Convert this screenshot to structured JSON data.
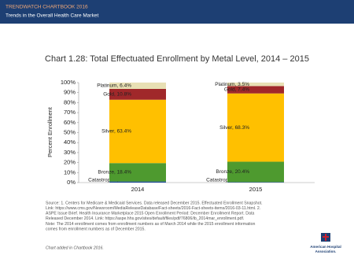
{
  "header": {
    "series": "TRENDWATCH CHARTBOOK 2016",
    "subtitle": "Trends in the Overall Health Care Market"
  },
  "chart_data": {
    "type": "stacked_bar",
    "title": "Chart 1.28: Total Effectuated Enrollment by Metal Level, 2014 – 2015",
    "y_label": "Percent Enrollment",
    "categories": [
      "2014",
      "2015"
    ],
    "series": [
      {
        "name": "Catastrophic",
        "color": "#1f4e9a",
        "values": [
          1.1,
          0.5
        ],
        "value_labels": [
          "Catastrophic, 1.1%",
          "Catastrophic, 0.5%"
        ]
      },
      {
        "name": "Bronze",
        "color": "#4e9a2f",
        "values": [
          18.4,
          20.4
        ],
        "value_labels": [
          "Bronze, 18.4%",
          "Bronze, 20.4%"
        ]
      },
      {
        "name": "Silver",
        "color": "#ffc000",
        "values": [
          63.4,
          68.3
        ],
        "value_labels": [
          "Silver, 63.4%",
          "Silver, 68.3%"
        ]
      },
      {
        "name": "Gold",
        "color": "#a0282a",
        "values": [
          10.8,
          7.4
        ],
        "value_labels": [
          "Gold, 10.8%",
          "Gold, 7.4%"
        ]
      },
      {
        "name": "Platinum",
        "color": "#e8e0b4",
        "values": [
          6.4,
          3.5
        ],
        "value_labels": [
          "Platinum, 6.4%",
          "Platinum, 3.5%"
        ]
      }
    ],
    "ylim": [
      0,
      100
    ],
    "yticks": [
      {
        "value": 0,
        "label": "0%"
      },
      {
        "value": 10,
        "label": "10%"
      },
      {
        "value": 20,
        "label": "20%"
      },
      {
        "value": 30,
        "label": "30%"
      },
      {
        "value": 40,
        "label": "40%"
      },
      {
        "value": 50,
        "label": "50%"
      },
      {
        "value": 60,
        "label": "60%"
      },
      {
        "value": 70,
        "label": "70%"
      },
      {
        "value": 80,
        "label": "80%"
      },
      {
        "value": 90,
        "label": "90%"
      },
      {
        "value": 100,
        "label": "100%"
      }
    ]
  },
  "notes": [
    "Source: 1. Centers for Medicare & Medicaid Services. Data released December 2015. Effectuated Enrollment Snapshot.",
    "Link: https://www.cms.gov/Newsroom/MediaReleaseDatabase/Fact-sheets/2016-Fact-sheets-items/2016-03-11.html. 2.",
    "ASPE Issue Brief. Health Insurance Marketplace 2015 Open Enrollment Period: December Enrollment Report. Data",
    "Released December 2014. Link: https://aspe.hhs.gov/sites/default/files/pdf/76806/ib_2014mar_enrollment.pdf.",
    "Note: The 2014 enrollment comes from enrollment numbers as of March 2014 while the 2015 enrollment information",
    "comes from enrollment numbers as of December 2015."
  ],
  "footnote": "Chart added in Chartbook 2016.",
  "logo": [
    "American Hospital",
    "Association."
  ]
}
